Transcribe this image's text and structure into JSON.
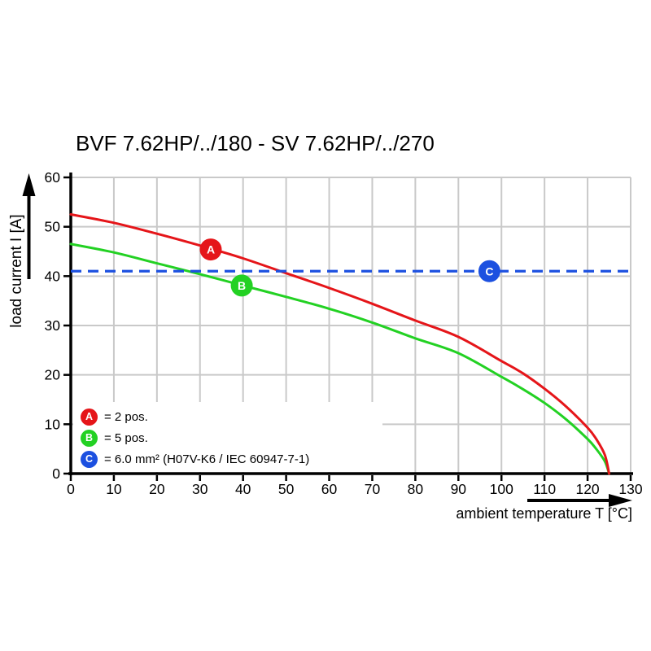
{
  "chart_data": {
    "type": "line",
    "title": "BVF 7.62HP/../180 - SV 7.62HP/../270",
    "xlabel": "ambient temperature T [°C]",
    "ylabel": "load current I [A]",
    "xlim": [
      0,
      130
    ],
    "ylim": [
      0,
      60
    ],
    "x_ticks": [
      0,
      10,
      20,
      30,
      40,
      50,
      60,
      70,
      80,
      90,
      100,
      110,
      120,
      130
    ],
    "y_ticks": [
      0,
      10,
      20,
      30,
      40,
      50,
      60
    ],
    "grid": true,
    "legend_position": "inside-bottom-left",
    "series": [
      {
        "name": "2 pos.",
        "marker_letter": "A",
        "color": "#e51519",
        "style": "solid",
        "points": [
          [
            0,
            52.5
          ],
          [
            10,
            50.8
          ],
          [
            20,
            48.6
          ],
          [
            30,
            46.2
          ],
          [
            40,
            43.6
          ],
          [
            50,
            40.6
          ],
          [
            60,
            37.6
          ],
          [
            70,
            34.4
          ],
          [
            80,
            31.0
          ],
          [
            90,
            27.7
          ],
          [
            100,
            22.8
          ],
          [
            105,
            20.3
          ],
          [
            110,
            17.2
          ],
          [
            115,
            13.6
          ],
          [
            120,
            9.3
          ],
          [
            122,
            7.0
          ],
          [
            124,
            3.8
          ],
          [
            125,
            0
          ]
        ]
      },
      {
        "name": "5 pos.",
        "marker_letter": "B",
        "color": "#23d123",
        "style": "solid",
        "points": [
          [
            0,
            46.5
          ],
          [
            10,
            44.8
          ],
          [
            20,
            42.6
          ],
          [
            30,
            40.4
          ],
          [
            40,
            38.1
          ],
          [
            50,
            35.8
          ],
          [
            60,
            33.4
          ],
          [
            70,
            30.6
          ],
          [
            80,
            27.4
          ],
          [
            90,
            24.4
          ],
          [
            100,
            19.6
          ],
          [
            105,
            17.1
          ],
          [
            110,
            14.3
          ],
          [
            115,
            11.0
          ],
          [
            120,
            7.0
          ],
          [
            122,
            5.0
          ],
          [
            124,
            2.5
          ],
          [
            125,
            0
          ]
        ]
      }
    ],
    "reference_line": {
      "label": "6.0 mm² (H07V-K6 / IEC 60947-7-1)",
      "marker_letter": "C",
      "value": 41,
      "color": "#1c50e0",
      "style": "dashed",
      "x_range": [
        0,
        130
      ]
    },
    "markers": [
      {
        "letter": "A",
        "x": 32.5,
        "y": 45.4,
        "color": "#e51519"
      },
      {
        "letter": "B",
        "x": 39.7,
        "y": 38.1,
        "color": "#23d123"
      },
      {
        "letter": "C",
        "x": 97.2,
        "y": 41.0,
        "color": "#1c50e0"
      }
    ]
  },
  "legend": {
    "items": [
      {
        "letter": "A",
        "color": "#e51519",
        "text": "= 2 pos."
      },
      {
        "letter": "B",
        "color": "#23d123",
        "text": "= 5 pos."
      },
      {
        "letter": "C",
        "color": "#1c50e0",
        "text": "= 6.0 mm² (H07V-K6 / IEC 60947-7-1)"
      }
    ]
  },
  "colors": {
    "background": "#ffffff",
    "grid": "#c9c9c9",
    "axis": "#000000",
    "tick_label": "#000000",
    "curve_2pos": "#e51519",
    "curve_5pos": "#23d123",
    "reference": "#1c50e0"
  }
}
